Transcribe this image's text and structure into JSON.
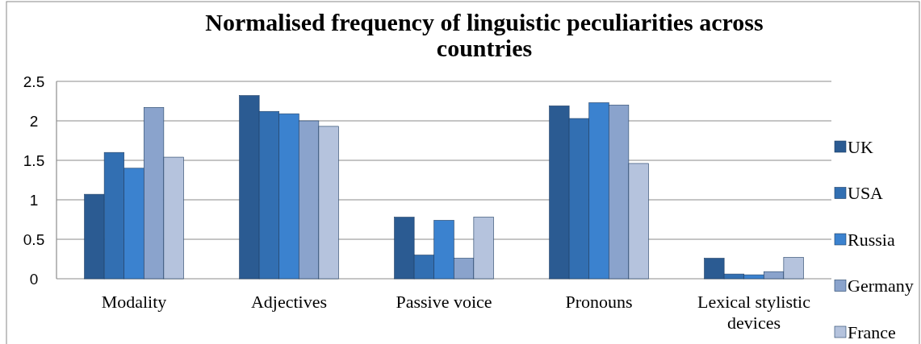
{
  "chart_data": {
    "type": "bar",
    "title": "Normalised frequency of linguistic peculiarities across countries",
    "categories": [
      "Modality",
      "Adjectives",
      "Passive voice",
      "Pronouns",
      "Lexical stylistic devices"
    ],
    "series": [
      {
        "name": "UK",
        "color": "#2b5b92",
        "values": [
          1.07,
          2.32,
          0.78,
          2.19,
          0.26
        ]
      },
      {
        "name": "USA",
        "color": "#326fb2",
        "values": [
          1.6,
          2.12,
          0.3,
          2.03,
          0.06
        ]
      },
      {
        "name": "Russia",
        "color": "#3b82cf",
        "values": [
          1.4,
          2.09,
          0.74,
          2.23,
          0.05
        ]
      },
      {
        "name": "Germany",
        "color": "#8aa3cc",
        "values": [
          2.17,
          2.0,
          0.26,
          2.2,
          0.09
        ]
      },
      {
        "name": "France",
        "color": "#b5c3dd",
        "values": [
          1.54,
          1.93,
          0.78,
          1.46,
          0.27
        ]
      }
    ],
    "ylim": [
      0,
      2.5
    ],
    "yticks": [
      0,
      0.5,
      1,
      1.5,
      2,
      2.5
    ],
    "grid": "y",
    "legend": "right"
  }
}
